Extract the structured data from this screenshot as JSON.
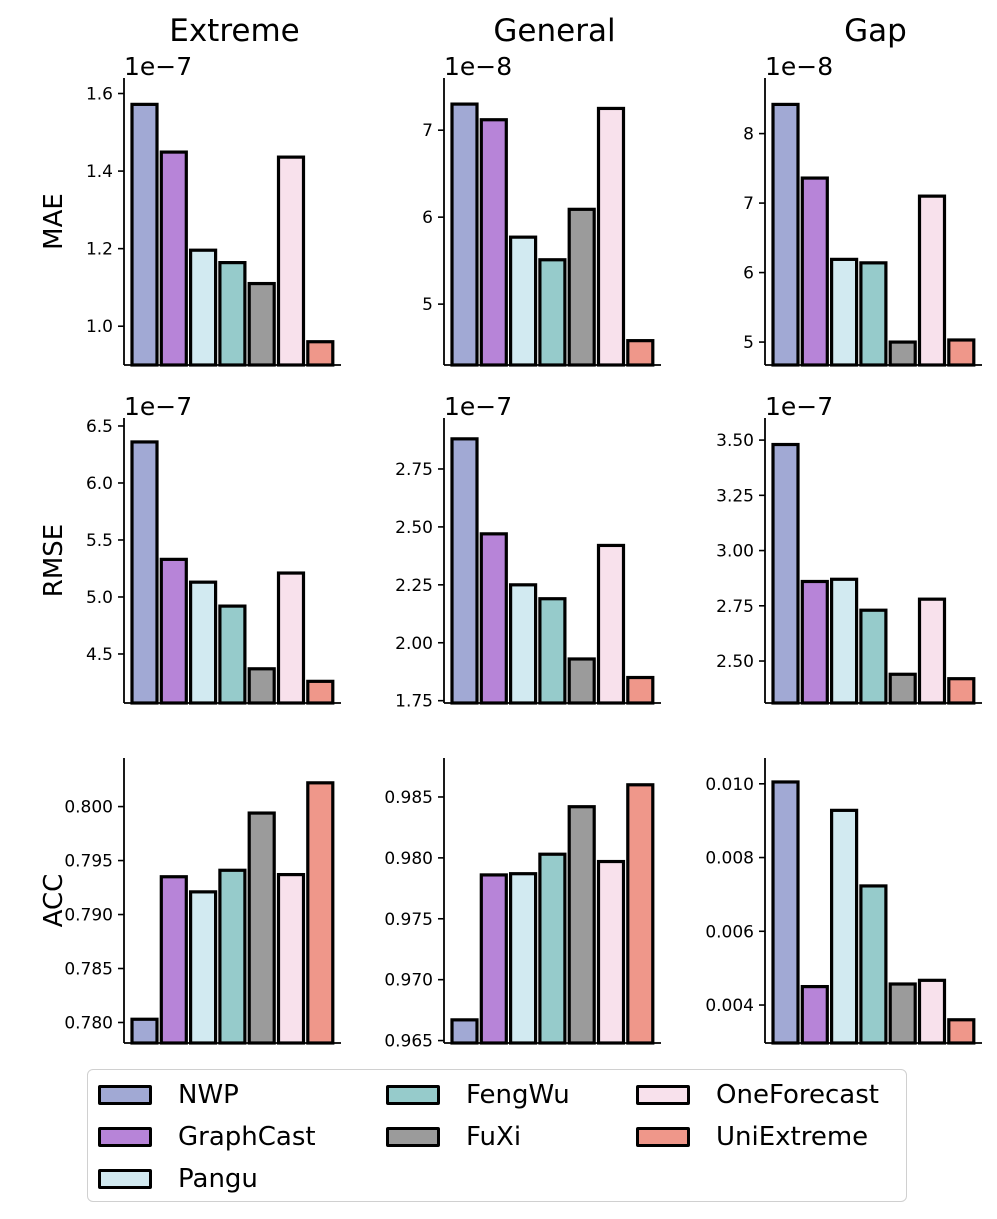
{
  "columns": [
    "Extreme",
    "General",
    "Gap"
  ],
  "models": [
    "NWP",
    "GraphCast",
    "Pangu",
    "FengWu",
    "FuXi",
    "OneForecast",
    "UniExtreme"
  ],
  "colors": [
    "#a1a9d4",
    "#b784d8",
    "#d2eaf1",
    "#96cbcb",
    "#9b9b9b",
    "#f8e1ec",
    "#ef978a"
  ],
  "chart_data": [
    {
      "type": "bar",
      "row": "MAE",
      "column": "Extreme",
      "ylabel": "MAE",
      "offset": "1e−7",
      "ylim": [
        0.9,
        1.64
      ],
      "ticks": [
        1.0,
        1.2,
        1.4,
        1.6
      ],
      "tick_labels": [
        "1.0",
        "1.2",
        "1.4",
        "1.6"
      ],
      "categories": [
        "NWP",
        "GraphCast",
        "Pangu",
        "FengWu",
        "FuXi",
        "OneForecast",
        "UniExtreme"
      ],
      "values": [
        1.572,
        1.449,
        1.196,
        1.164,
        1.11,
        1.436,
        0.96
      ]
    },
    {
      "type": "bar",
      "row": "MAE",
      "column": "General",
      "ylabel": "",
      "offset": "1e−8",
      "ylim": [
        4.3,
        7.6
      ],
      "ticks": [
        5,
        6,
        7
      ],
      "tick_labels": [
        "5",
        "6",
        "7"
      ],
      "categories": [
        "NWP",
        "GraphCast",
        "Pangu",
        "FengWu",
        "FuXi",
        "OneForecast",
        "UniExtreme"
      ],
      "values": [
        7.3,
        7.12,
        5.77,
        5.51,
        6.09,
        7.25,
        4.58
      ]
    },
    {
      "type": "bar",
      "row": "MAE",
      "column": "Gap",
      "ylabel": "",
      "offset": "1e−8",
      "ylim": [
        4.67,
        8.8
      ],
      "ticks": [
        5,
        6,
        7,
        8
      ],
      "tick_labels": [
        "5",
        "6",
        "7",
        "8"
      ],
      "categories": [
        "NWP",
        "GraphCast",
        "Pangu",
        "FengWu",
        "FuXi",
        "OneForecast",
        "UniExtreme"
      ],
      "values": [
        8.42,
        7.36,
        6.19,
        6.14,
        5.0,
        7.1,
        5.03
      ]
    },
    {
      "type": "bar",
      "row": "RMSE",
      "column": "Extreme",
      "ylabel": "RMSE",
      "offset": "1e−7",
      "ylim": [
        4.07,
        6.57
      ],
      "ticks": [
        4.5,
        5.0,
        5.5,
        6.0,
        6.5
      ],
      "tick_labels": [
        "4.5",
        "5.0",
        "5.5",
        "6.0",
        "6.5"
      ],
      "categories": [
        "NWP",
        "GraphCast",
        "Pangu",
        "FengWu",
        "FuXi",
        "OneForecast",
        "UniExtreme"
      ],
      "values": [
        6.36,
        5.33,
        5.13,
        4.92,
        4.37,
        5.21,
        4.26
      ]
    },
    {
      "type": "bar",
      "row": "RMSE",
      "column": "General",
      "ylabel": "",
      "offset": "1e−7",
      "ylim": [
        1.74,
        2.97
      ],
      "ticks": [
        1.75,
        2.0,
        2.25,
        2.5,
        2.75
      ],
      "tick_labels": [
        "1.75",
        "2.00",
        "2.25",
        "2.50",
        "2.75"
      ],
      "categories": [
        "NWP",
        "GraphCast",
        "Pangu",
        "FengWu",
        "FuXi",
        "OneForecast",
        "UniExtreme"
      ],
      "values": [
        2.88,
        2.47,
        2.25,
        2.19,
        1.93,
        2.42,
        1.85
      ]
    },
    {
      "type": "bar",
      "row": "RMSE",
      "column": "Gap",
      "ylabel": "",
      "offset": "1e−7",
      "ylim": [
        2.31,
        3.6
      ],
      "ticks": [
        2.5,
        2.75,
        3.0,
        3.25,
        3.5
      ],
      "tick_labels": [
        "2.50",
        "2.75",
        "3.00",
        "3.25",
        "3.50"
      ],
      "categories": [
        "NWP",
        "GraphCast",
        "Pangu",
        "FengWu",
        "FuXi",
        "OneForecast",
        "UniExtreme"
      ],
      "values": [
        3.48,
        2.86,
        2.87,
        2.73,
        2.44,
        2.78,
        2.42
      ]
    },
    {
      "type": "bar",
      "row": "ACC",
      "column": "Extreme",
      "ylabel": "ACC",
      "offset": "",
      "ylim": [
        0.7781,
        0.8045
      ],
      "ticks": [
        0.78,
        0.785,
        0.79,
        0.795,
        0.8
      ],
      "tick_labels": [
        "0.780",
        "0.785",
        "0.790",
        "0.795",
        "0.800"
      ],
      "categories": [
        "NWP",
        "GraphCast",
        "Pangu",
        "FengWu",
        "FuXi",
        "OneForecast",
        "UniExtreme"
      ],
      "values": [
        0.7803,
        0.7935,
        0.7921,
        0.7941,
        0.7994,
        0.7937,
        0.8022
      ]
    },
    {
      "type": "bar",
      "row": "ACC",
      "column": "General",
      "ylabel": "",
      "offset": "",
      "ylim": [
        0.9648,
        0.9882
      ],
      "ticks": [
        0.965,
        0.97,
        0.975,
        0.98,
        0.985
      ],
      "tick_labels": [
        "0.965",
        "0.970",
        "0.975",
        "0.980",
        "0.985"
      ],
      "categories": [
        "NWP",
        "GraphCast",
        "Pangu",
        "FengWu",
        "FuXi",
        "OneForecast",
        "UniExtreme"
      ],
      "values": [
        0.9667,
        0.9786,
        0.9787,
        0.9803,
        0.9842,
        0.9797,
        0.986
      ]
    },
    {
      "type": "bar",
      "row": "ACC",
      "column": "Gap",
      "ylabel": "",
      "offset": "",
      "ylim": [
        0.00297,
        0.0107
      ],
      "ticks": [
        0.004,
        0.006,
        0.008,
        0.01
      ],
      "tick_labels": [
        "0.004",
        "0.006",
        "0.008",
        "0.010"
      ],
      "categories": [
        "NWP",
        "GraphCast",
        "Pangu",
        "FengWu",
        "FuXi",
        "OneForecast",
        "UniExtreme"
      ],
      "values": [
        0.01005,
        0.0045,
        0.00928,
        0.00723,
        0.00457,
        0.00467,
        0.0036
      ]
    }
  ]
}
